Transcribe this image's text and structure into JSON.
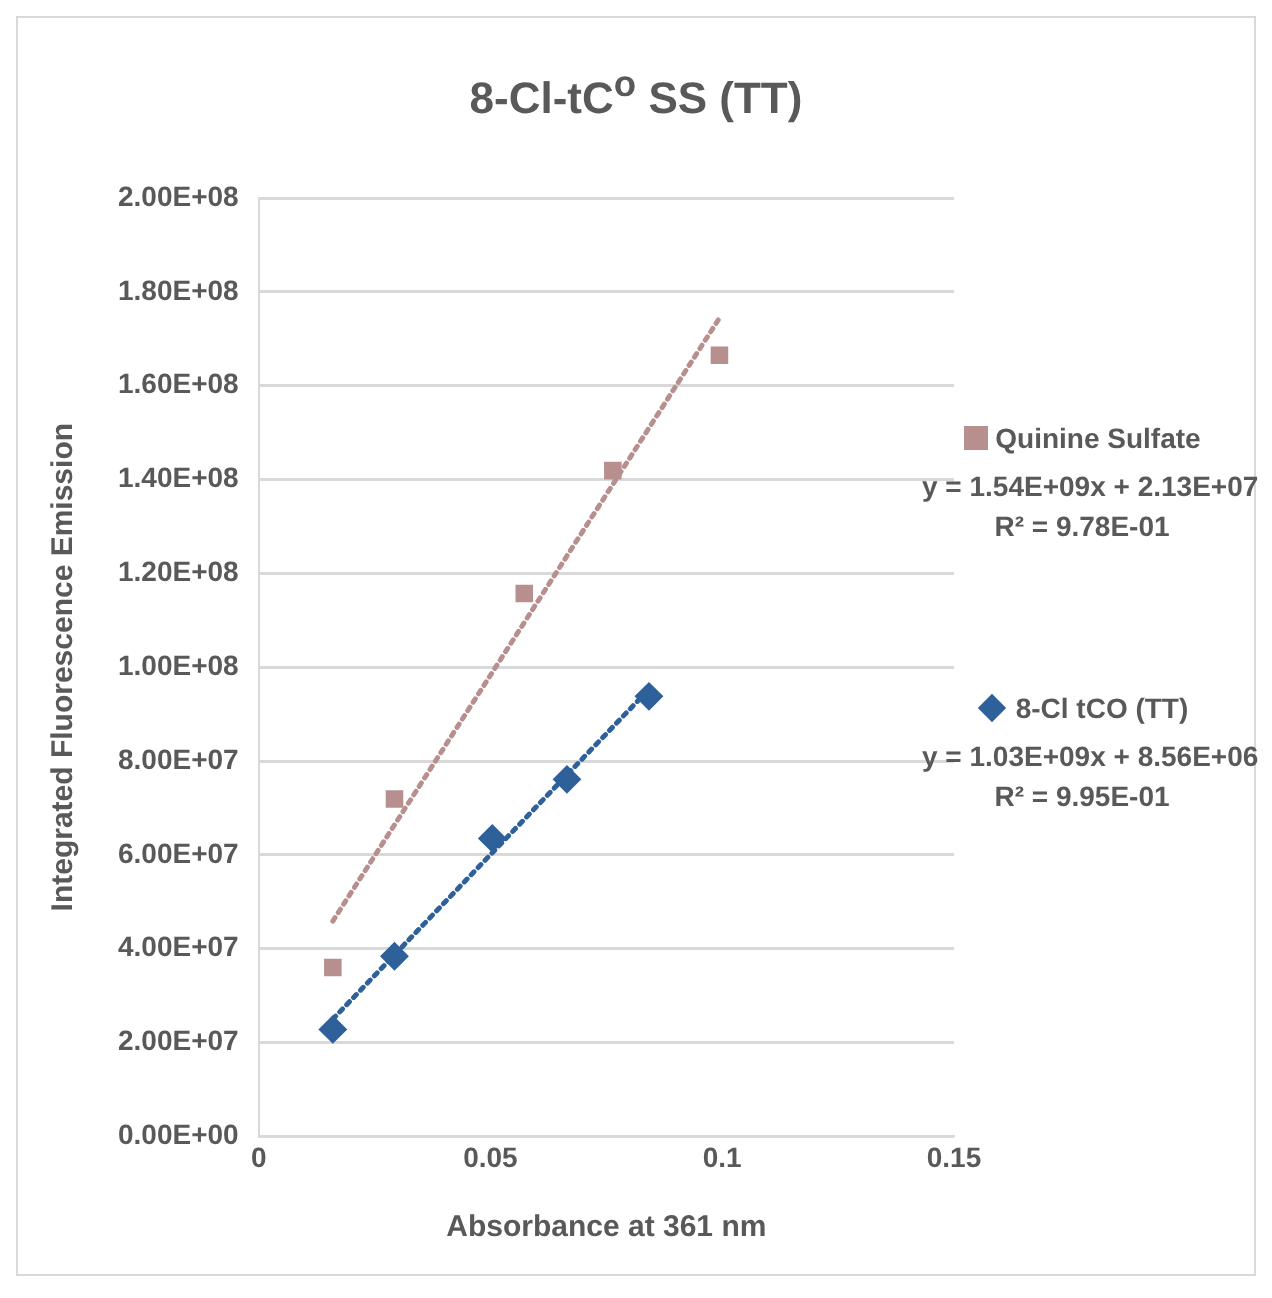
{
  "chart_data": {
    "type": "scatter",
    "title": "8-Cl-tC$^{o}$ SS (TT)",
    "xlabel": "Absorbance at 361 nm",
    "ylabel": "Integrated Fluorescence Emission",
    "series": [
      {
        "name": "Quinine Sulfate",
        "color": "#b88f8f",
        "marker": "square",
        "x": [
          0.016,
          0.0293,
          0.0573,
          0.0764,
          0.0994
        ],
        "values": [
          36000000,
          71900000,
          115700000,
          141900000,
          166500000
        ]
      },
      {
        "name": "8-Cl tCO (TT)",
        "color": "#2e6099",
        "marker": "diamond",
        "x": [
          0.016,
          0.0293,
          0.0504,
          0.0665,
          0.0842
        ],
        "values": [
          22800000,
          38400000,
          63500000,
          76100000,
          93800000
        ]
      },
      {
        "type": "line",
        "color": "#b88f8f",
        "line_style": "dotted",
        "x": [
          0.016,
          0.0994
        ],
        "values": [
          45900000,
          174400000
        ]
      },
      {
        "type": "line",
        "color": "#2e6099",
        "line_style": "dotted",
        "x": [
          0.016,
          0.0842
        ],
        "values": [
          25000000,
          95300000
        ]
      }
    ],
    "annotations": [
      "y = 1.54E+09x + 2.13E+07",
      "R² = 9.78E-01",
      "y = 1.03E+09x + 8.56E+06",
      "R² = 9.95E-01"
    ],
    "xlim": [
      0,
      0.15
    ],
    "xticks": [
      0,
      0.05,
      0.1,
      0.15
    ],
    "ylim": [
      0,
      200000000
    ],
    "yticks": [
      {
        "value": 0,
        "label": "0.00E+00"
      },
      {
        "value": 20000000,
        "label": "2.00E+07"
      },
      {
        "value": 40000000,
        "label": "4.00E+07"
      },
      {
        "value": 60000000,
        "label": "6.00E+07"
      },
      {
        "value": 80000000,
        "label": "8.00E+07"
      },
      {
        "value": 100000000,
        "label": "1.00E+08"
      },
      {
        "value": 120000000,
        "label": "1.20E+08"
      },
      {
        "value": 140000000,
        "label": "1.40E+08"
      },
      {
        "value": 160000000,
        "label": "1.60E+08"
      },
      {
        "value": 180000000,
        "label": "1.80E+08"
      },
      {
        "value": 200000000,
        "label": "2.00E+08"
      }
    ],
    "grid": "y",
    "legend": "right"
  }
}
